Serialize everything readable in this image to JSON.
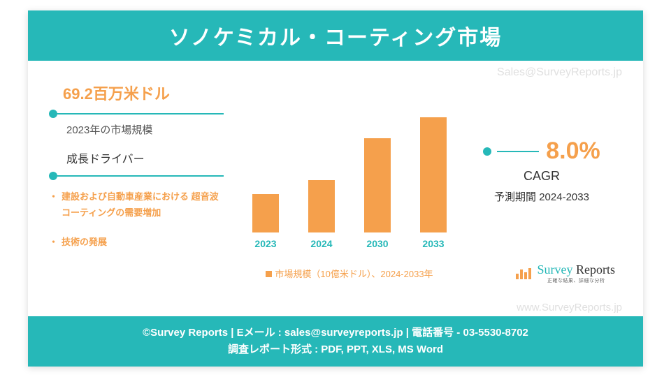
{
  "header": {
    "title": "ソノケミカル・コーティング市場"
  },
  "watermark": {
    "top": "Sales@SurveyReports.jp",
    "bottom": "www.SurveyReports.jp"
  },
  "market_size": {
    "value": "69.2百万米ドル",
    "label": "2023年の市場規模"
  },
  "drivers": {
    "title": "成長ドライバー",
    "items": [
      "建設および自動車産業における 超音波コーティングの需要増加",
      "技術の発展"
    ]
  },
  "chart": {
    "type": "bar",
    "categories": [
      "2023",
      "2024",
      "2030",
      "2033"
    ],
    "values": [
      55,
      75,
      135,
      165
    ],
    "max_height": 190,
    "bar_color": "#f5a04c",
    "label_color": "#26b8b8",
    "legend": "市場規模（10億米ドル）、2024-2033年"
  },
  "cagr": {
    "value": "8.0%",
    "label": "CAGR",
    "period": "予測期間 2024-2033"
  },
  "brand": {
    "name_part1": "Survey",
    "name_part2": " Reports",
    "tagline": "正確な結果、詳細な分析"
  },
  "footer": {
    "line1": "©Survey Reports | Eメール : sales@surveyreports.jp | 電話番号 - 03-5530-8702",
    "line2": "調査レポート形式 : PDF, PPT, XLS, MS Word"
  },
  "colors": {
    "teal": "#26b8b8",
    "orange": "#f5a04c",
    "text": "#333333",
    "background": "#ffffff"
  }
}
